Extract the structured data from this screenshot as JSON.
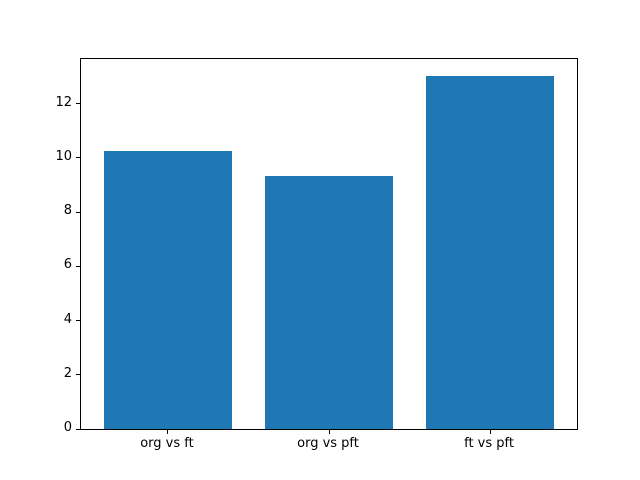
{
  "figure": {
    "background": "#ffffff",
    "axis_color": "#000000"
  },
  "chart_data": {
    "type": "bar",
    "categories": [
      "org vs ft",
      "org vs pft",
      "ft vs pft"
    ],
    "values": [
      10.27,
      9.35,
      13.02
    ],
    "title": "",
    "xlabel": "",
    "ylabel": "",
    "ylim": [
      0,
      13.65
    ],
    "yticks": [
      0,
      2,
      4,
      6,
      8,
      10,
      12
    ],
    "bar_color": "#1f77b4",
    "bar_width_fraction": 0.8,
    "grid": false,
    "legend_position": "none"
  }
}
